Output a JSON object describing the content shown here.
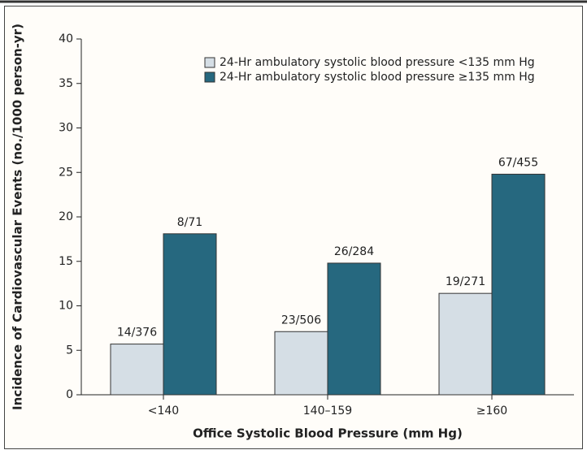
{
  "chart_data": {
    "type": "bar",
    "y_label": "Incidence of Cardiovascular Events (no./1000 person-yr)",
    "x_label": "Office Systolic Blood Pressure (mm Hg)",
    "categories": [
      "<140",
      "140–159",
      "≥160"
    ],
    "series": [
      {
        "name": "24-Hr ambulatory systolic blood pressure <135 mm Hg",
        "color": "#d5dee5",
        "values": [
          5.7,
          7.1,
          11.4
        ],
        "annotations": [
          "14/376",
          "23/506",
          "19/271"
        ]
      },
      {
        "name": "24-Hr ambulatory systolic blood pressure ≥135 mm Hg",
        "color": "#26687f",
        "values": [
          18.1,
          14.8,
          24.8
        ],
        "annotations": [
          "8/71",
          "26/284",
          "67/455"
        ]
      }
    ],
    "ylim": [
      0,
      40
    ],
    "yticks": [
      0,
      5,
      10,
      15,
      20,
      25,
      30,
      35,
      40
    ],
    "legend": "top-right"
  }
}
